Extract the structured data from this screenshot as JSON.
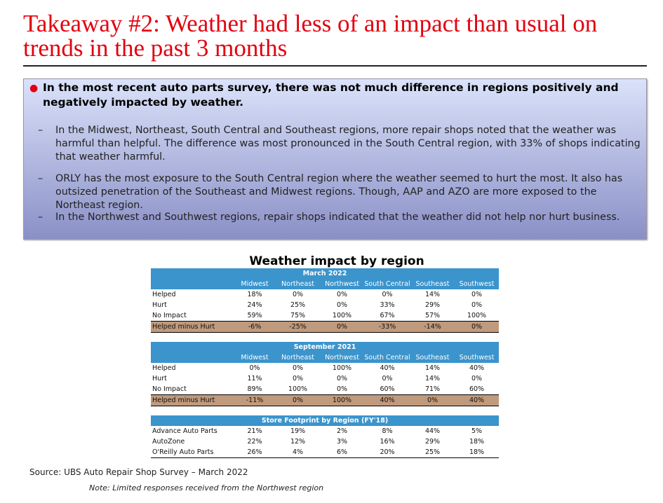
{
  "title": "Takeaway #2: Weather had less of an impact than usual on trends in the past 3 months",
  "box": {
    "lead": "In the most recent auto parts survey, there was not much difference in regions positively and negatively impacted by weather.",
    "subs": [
      "In the Midwest, Northeast, South Central and Southeast regions, more repair shops noted that the weather was harmful than helpful. The difference was most pronounced in the South Central region, with 33% of shops indicating that weather harmful.",
      "ORLY has the most exposure to the South Central region where the weather seemed to hurt the most. It also has outsized penetration of the Southeast and Midwest regions. Though, AAP and AZO are more exposed to the Northeast region.",
      "In the Northwest and Southwest regions, repair shops indicated that the weather did not help nor hurt business."
    ]
  },
  "table_title": "Weather impact by region",
  "columns": [
    "Midwest",
    "Northeast",
    "Northwest",
    "South Central",
    "Southeast",
    "Southwest"
  ],
  "tables": [
    {
      "title": "March 2022",
      "rows": [
        [
          "Helped",
          "18%",
          "0%",
          "0%",
          "0%",
          "14%",
          "0%"
        ],
        [
          "Hurt",
          "24%",
          "25%",
          "0%",
          "33%",
          "29%",
          "0%"
        ],
        [
          "No Impact",
          "59%",
          "75%",
          "100%",
          "67%",
          "57%",
          "100%"
        ],
        [
          "Helped minus Hurt",
          "-6%",
          "-25%",
          "0%",
          "-33%",
          "-14%",
          "0%"
        ]
      ]
    },
    {
      "title": "September 2021",
      "rows": [
        [
          "Helped",
          "0%",
          "0%",
          "100%",
          "40%",
          "14%",
          "40%"
        ],
        [
          "Hurt",
          "11%",
          "0%",
          "0%",
          "0%",
          "14%",
          "0%"
        ],
        [
          "No Impact",
          "89%",
          "100%",
          "0%",
          "60%",
          "71%",
          "60%"
        ],
        [
          "Helped minus Hurt",
          "-11%",
          "0%",
          "100%",
          "40%",
          "0%",
          "40%"
        ]
      ]
    },
    {
      "title": "Store Footprint by Region (FY'18)",
      "rows": [
        [
          "Advance Auto Parts",
          "21%",
          "19%",
          "2%",
          "8%",
          "44%",
          "5%"
        ],
        [
          "AutoZone",
          "22%",
          "12%",
          "3%",
          "16%",
          "29%",
          "18%"
        ],
        [
          "O'Reilly Auto Parts",
          "26%",
          "4%",
          "6%",
          "20%",
          "25%",
          "18%"
        ]
      ]
    }
  ],
  "source": "Source: UBS Auto Repair Shop Survey – March 2022",
  "note": "Note: Limited responses received from the Northwest region",
  "colors": {
    "title": "#e3000f",
    "header": "#3b94cc",
    "highlight": "#c09a7c"
  }
}
